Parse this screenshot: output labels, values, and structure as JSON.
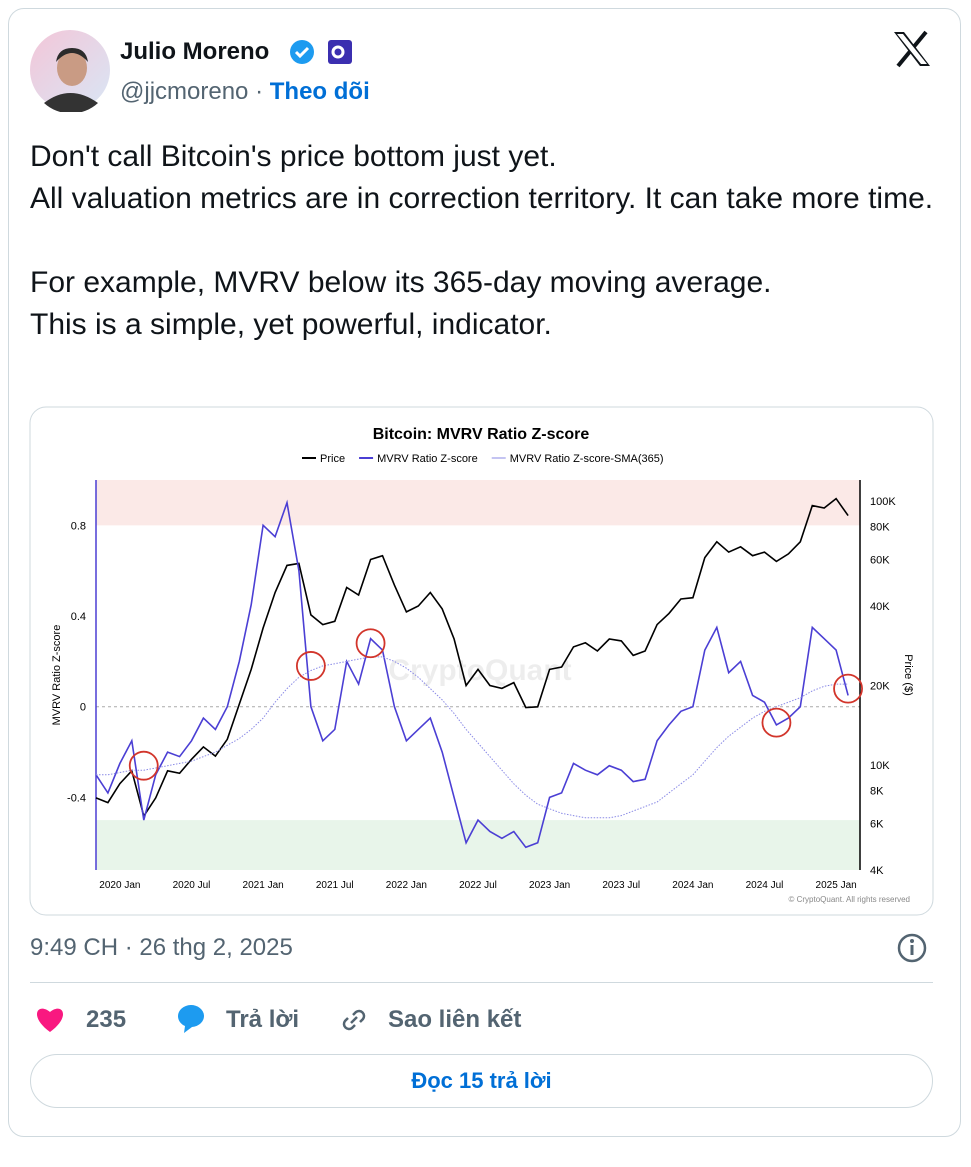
{
  "tweet": {
    "author": "Julio Moreno",
    "handle": "@jjcmoreno",
    "separator": "·",
    "follow": "Theo dõi",
    "text": [
      "Don't call Bitcoin's price bottom just yet.",
      "All valuation metrics are in correction territory. It can take more time.",
      "For example, MVRV below its 365-day moving average.",
      "This is a simple, yet powerful, indicator."
    ],
    "timestamp": "9:49 CH · 26 thg 2, 2025",
    "likes": "235",
    "reply": "Trả lời",
    "copy_link": "Sao liên kết",
    "read_replies": "Đọc 15 trả lời"
  },
  "chart_data": {
    "type": "line",
    "title": "Bitcoin: MVRV Ratio Z-score",
    "ylabel": "MVRV Ratio Z-score",
    "y2label": "Price ($)",
    "watermark": "CryptoQuant",
    "copyright": "© CryptoQuant. All rights reserved",
    "x": [
      "2019-11",
      "2019-12",
      "2020-01",
      "2020-02",
      "2020-03",
      "2020-04",
      "2020-05",
      "2020-06",
      "2020-07",
      "2020-08",
      "2020-09",
      "2020-10",
      "2020-11",
      "2020-12",
      "2021-01",
      "2021-02",
      "2021-03",
      "2021-04",
      "2021-05",
      "2021-06",
      "2021-07",
      "2021-08",
      "2021-09",
      "2021-10",
      "2021-11",
      "2021-12",
      "2022-01",
      "2022-02",
      "2022-03",
      "2022-04",
      "2022-05",
      "2022-06",
      "2022-07",
      "2022-08",
      "2022-09",
      "2022-10",
      "2022-11",
      "2022-12",
      "2023-01",
      "2023-02",
      "2023-03",
      "2023-04",
      "2023-05",
      "2023-06",
      "2023-07",
      "2023-08",
      "2023-09",
      "2023-10",
      "2023-11",
      "2023-12",
      "2024-01",
      "2024-02",
      "2024-03",
      "2024-04",
      "2024-05",
      "2024-06",
      "2024-07",
      "2024-08",
      "2024-09",
      "2024-10",
      "2024-11",
      "2024-12",
      "2025-01",
      "2025-02"
    ],
    "series": [
      {
        "name": "Price",
        "color": "#000000",
        "axis": "y2",
        "values": [
          7500,
          7200,
          8500,
          9500,
          6400,
          7500,
          9500,
          9300,
          10500,
          11700,
          10800,
          12500,
          17000,
          23000,
          33000,
          45000,
          57000,
          58000,
          37000,
          34000,
          35000,
          47000,
          44000,
          60000,
          62000,
          48000,
          38000,
          40000,
          45000,
          39000,
          30000,
          20000,
          23000,
          20000,
          19500,
          20500,
          16500,
          16600,
          23000,
          23500,
          28000,
          29000,
          27000,
          30000,
          29500,
          26000,
          27000,
          34000,
          37500,
          42500,
          43000,
          61000,
          70000,
          64000,
          67000,
          62000,
          64000,
          59000,
          63000,
          70000,
          96000,
          94000,
          102000,
          88000
        ]
      },
      {
        "name": "MVRV Ratio Z-score",
        "color": "#4b3fd4",
        "values": [
          -0.3,
          -0.38,
          -0.25,
          -0.15,
          -0.5,
          -0.3,
          -0.2,
          -0.22,
          -0.15,
          -0.05,
          -0.1,
          0.0,
          0.2,
          0.45,
          0.8,
          0.75,
          0.9,
          0.6,
          0.0,
          -0.15,
          -0.1,
          0.2,
          0.1,
          0.3,
          0.25,
          0.0,
          -0.15,
          -0.1,
          -0.05,
          -0.2,
          -0.4,
          -0.6,
          -0.5,
          -0.55,
          -0.58,
          -0.55,
          -0.62,
          -0.6,
          -0.4,
          -0.38,
          -0.25,
          -0.28,
          -0.3,
          -0.26,
          -0.28,
          -0.33,
          -0.32,
          -0.15,
          -0.08,
          -0.02,
          0.0,
          0.25,
          0.35,
          0.15,
          0.2,
          0.05,
          0.02,
          -0.08,
          -0.05,
          0.0,
          0.35,
          0.3,
          0.25,
          0.05
        ]
      },
      {
        "name": "MVRV Ratio Z-score-SMA(365)",
        "color": "#8a8ae6",
        "values": [
          -0.3,
          -0.3,
          -0.29,
          -0.28,
          -0.28,
          -0.27,
          -0.26,
          -0.25,
          -0.24,
          -0.22,
          -0.2,
          -0.17,
          -0.14,
          -0.1,
          -0.05,
          0.02,
          0.08,
          0.13,
          0.16,
          0.18,
          0.19,
          0.2,
          0.21,
          0.22,
          0.22,
          0.2,
          0.17,
          0.13,
          0.08,
          0.03,
          -0.03,
          -0.1,
          -0.16,
          -0.22,
          -0.28,
          -0.34,
          -0.39,
          -0.43,
          -0.45,
          -0.47,
          -0.48,
          -0.49,
          -0.49,
          -0.49,
          -0.48,
          -0.46,
          -0.44,
          -0.42,
          -0.38,
          -0.34,
          -0.3,
          -0.24,
          -0.18,
          -0.13,
          -0.09,
          -0.05,
          -0.02,
          0.0,
          0.02,
          0.04,
          0.07,
          0.09,
          0.1,
          0.1
        ]
      }
    ],
    "xlim": [
      "2019-11",
      "2025-03"
    ],
    "xticks": [
      {
        "value": "2020-01",
        "label": "2020 Jan"
      },
      {
        "value": "2020-07",
        "label": "2020 Jul"
      },
      {
        "value": "2021-01",
        "label": "2021 Jan"
      },
      {
        "value": "2021-07",
        "label": "2021 Jul"
      },
      {
        "value": "2022-01",
        "label": "2022 Jan"
      },
      {
        "value": "2022-07",
        "label": "2022 Jul"
      },
      {
        "value": "2023-01",
        "label": "2023 Jan"
      },
      {
        "value": "2023-07",
        "label": "2023 Jul"
      },
      {
        "value": "2024-01",
        "label": "2024 Jan"
      },
      {
        "value": "2024-07",
        "label": "2024 Jul"
      },
      {
        "value": "2025-01",
        "label": "2025 Jan"
      }
    ],
    "ylim": [
      -0.72,
      1.0
    ],
    "yticks": [
      -0.4,
      0,
      0.4,
      0.8
    ],
    "y2lim": [
      4000,
      120000
    ],
    "y2scale": "log",
    "y2ticks": [
      {
        "value": 4000,
        "label": "4K"
      },
      {
        "value": 6000,
        "label": "6K"
      },
      {
        "value": 8000,
        "label": "8K"
      },
      {
        "value": 10000,
        "label": "10K"
      },
      {
        "value": 20000,
        "label": "20K"
      },
      {
        "value": 40000,
        "label": "40K"
      },
      {
        "value": 60000,
        "label": "60K"
      },
      {
        "value": 80000,
        "label": "80K"
      },
      {
        "value": 100000,
        "label": "100K"
      }
    ],
    "bands": [
      {
        "from": 0.8,
        "to": 1.0,
        "color": "#fbe9e7"
      },
      {
        "from": -0.72,
        "to": -0.5,
        "color": "#e8f5ea"
      }
    ],
    "reference_line": 0,
    "highlights": [
      {
        "x": "2020-03",
        "y": -0.26
      },
      {
        "x": "2021-05",
        "y": 0.18
      },
      {
        "x": "2021-10",
        "y": 0.28
      },
      {
        "x": "2024-08",
        "y": -0.07
      },
      {
        "x": "2025-02",
        "y": 0.08
      }
    ],
    "highlight_color": "#d2352b"
  }
}
